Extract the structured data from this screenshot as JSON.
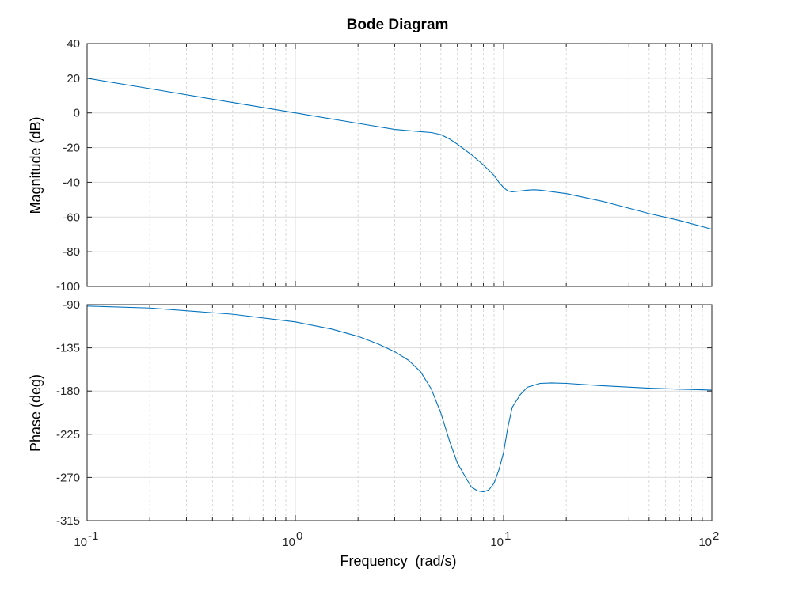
{
  "chart_data": {
    "type": "line",
    "title": "Bode Diagram",
    "xlabel": "Frequency  (rad/s)",
    "xscale": "log",
    "xlim": [
      0.1,
      100
    ],
    "x_ticks": [
      {
        "value": 0.1,
        "base": "10",
        "exp": "-1"
      },
      {
        "value": 1,
        "base": "10",
        "exp": "0"
      },
      {
        "value": 10,
        "base": "10",
        "exp": "1"
      },
      {
        "value": 100,
        "base": "10",
        "exp": "2"
      }
    ],
    "grid": true,
    "line_color": "#0072BD",
    "subplots": [
      {
        "name": "magnitude",
        "ylabel": "Magnitude (dB)",
        "ylim": [
          -100,
          40
        ],
        "y_ticks": [
          40,
          20,
          0,
          -20,
          -40,
          -60,
          -80,
          -100
        ],
        "series": [
          {
            "x": [
              0.1,
              0.2,
              0.5,
              1,
              2,
              3,
              4,
              4.5,
              5,
              5.5,
              6,
              7,
              8,
              9,
              9.5,
              10,
              10.5,
              11,
              12,
              13,
              14,
              15,
              20,
              30,
              50,
              70,
              100
            ],
            "values": [
              20,
              14,
              6,
              0,
              -6,
              -9.5,
              -10.8,
              -11.3,
              -12.5,
              -15,
              -18,
              -24,
              -30,
              -36,
              -40,
              -43,
              -45,
              -45.5,
              -45,
              -44.5,
              -44.3,
              -44.5,
              -46.5,
              -51,
              -58,
              -62,
              -67
            ]
          }
        ]
      },
      {
        "name": "phase",
        "ylabel": "Phase (deg)",
        "ylim": [
          -315,
          -90
        ],
        "y_ticks": [
          -90,
          -135,
          -180,
          -225,
          -270,
          -315
        ],
        "series": [
          {
            "x": [
              0.1,
              0.2,
              0.5,
              1,
              1.5,
              2,
              2.5,
              3,
              3.5,
              4,
              4.5,
              5,
              5.5,
              6,
              6.5,
              7,
              7.5,
              8,
              8.5,
              9,
              9.5,
              10,
              10.5,
              11,
              12,
              13,
              15,
              17,
              20,
              30,
              50,
              70,
              100
            ],
            "values": [
              -91.5,
              -93.5,
              -100,
              -108,
              -115.5,
              -123,
              -131,
              -139,
              -148,
              -160,
              -178,
              -203,
              -232,
              -255,
              -268,
              -280,
              -284,
              -285,
              -283,
              -276,
              -262,
              -244,
              -217,
              -197,
              -184,
              -176,
              -172,
              -171.5,
              -172,
              -174.5,
              -177,
              -178,
              -179
            ]
          }
        ]
      }
    ]
  }
}
